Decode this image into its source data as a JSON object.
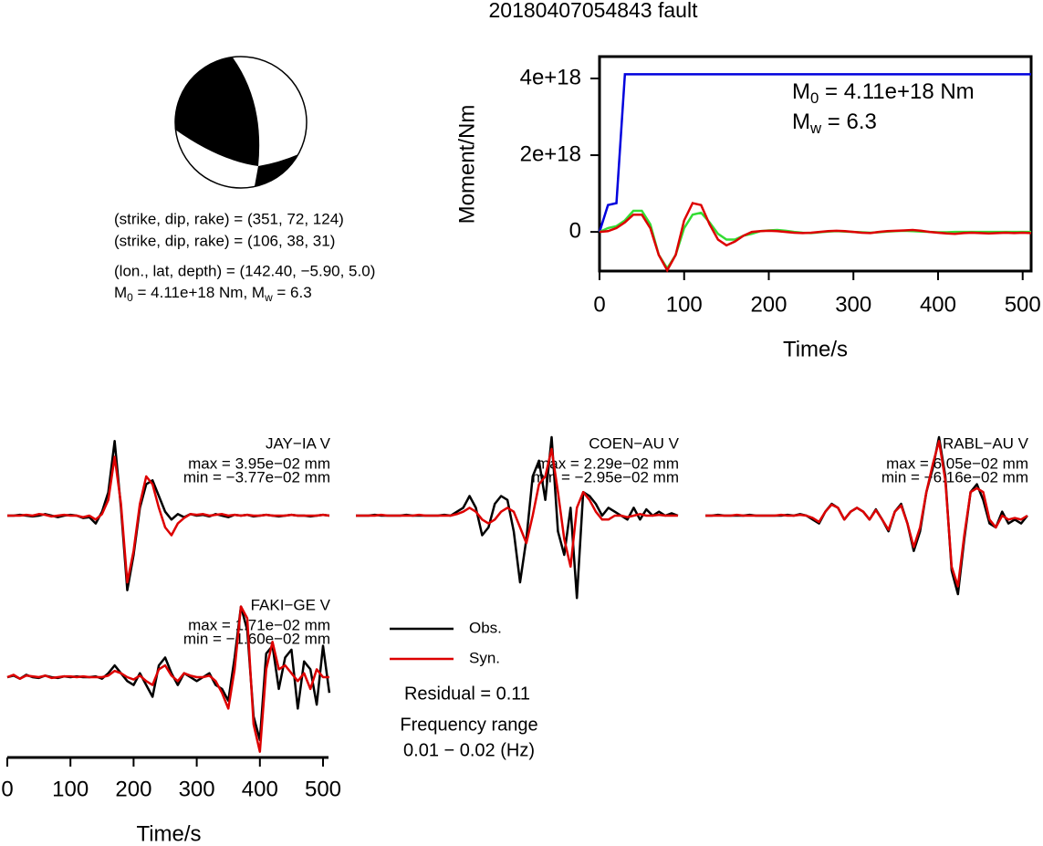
{
  "title": "20180407054843 fault",
  "mechanism": {
    "lines": [
      "(strike, dip, rake) = (351, 72, 124)",
      "(strike, dip, rake) = (106, 38, 31)",
      "(lon., lat, depth) = (142.40, −5.90, 5.0)"
    ],
    "moment": [
      "M",
      "0",
      " = 4.11e+18 Nm, M",
      "w",
      " = 6.3"
    ]
  },
  "legend": {
    "items": [
      {
        "name": "Obs.",
        "color": "#000000"
      },
      {
        "name": "Syn.",
        "color": "#dd0000"
      }
    ]
  },
  "residual": "Residual = 0.11",
  "frequency": [
    "Frequency range",
    "0.01 − 0.02 (Hz)"
  ],
  "chart_data": [
    {
      "type": "line",
      "ylabel": "Moment/Nm",
      "xlabel": "Time/s",
      "annotations": [
        [
          "M",
          "0",
          " = 4.11e+18 Nm"
        ],
        [
          "M",
          "w",
          " = 6.3"
        ]
      ],
      "xlim": [
        0,
        510
      ],
      "xticks": [
        0,
        100,
        200,
        300,
        400,
        500
      ],
      "ylim": [
        -1.02e+18,
        4.57e+18
      ],
      "yticks": [
        {
          "value": 0,
          "label": "0"
        },
        {
          "value": 2e+18,
          "label": "2e+18"
        },
        {
          "value": 4e+18,
          "label": "4e+18"
        }
      ],
      "x": [
        0,
        10,
        20,
        30,
        40,
        50,
        60,
        70,
        80,
        90,
        100,
        110,
        120,
        130,
        140,
        150,
        160,
        170,
        180,
        190,
        200,
        210,
        220,
        230,
        240,
        250,
        260,
        270,
        280,
        290,
        300,
        310,
        320,
        330,
        340,
        350,
        360,
        370,
        380,
        390,
        400,
        410,
        420,
        430,
        440,
        450,
        460,
        470,
        480,
        490,
        500,
        510
      ],
      "series": [
        {
          "color": "#0000dd",
          "values": [
            0,
            7e+17,
            7.5e+17,
            4.11e+18,
            4.11e+18,
            4.11e+18,
            4.11e+18,
            4.11e+18,
            4.11e+18,
            4.11e+18,
            4.11e+18,
            4.11e+18,
            4.11e+18,
            4.11e+18,
            4.11e+18,
            4.11e+18,
            4.11e+18,
            4.11e+18,
            4.11e+18,
            4.11e+18,
            4.11e+18,
            4.11e+18,
            4.11e+18,
            4.11e+18,
            4.11e+18,
            4.11e+18,
            4.11e+18,
            4.11e+18,
            4.11e+18,
            4.11e+18,
            4.11e+18,
            4.11e+18,
            4.11e+18,
            4.11e+18,
            4.11e+18,
            4.11e+18,
            4.11e+18,
            4.11e+18,
            4.11e+18,
            4.11e+18,
            4.11e+18,
            4.11e+18,
            4.11e+18,
            4.11e+18,
            4.11e+18,
            4.11e+18,
            4.11e+18,
            4.11e+18,
            4.11e+18,
            4.11e+18,
            4.11e+18,
            4.11e+18
          ]
        },
        {
          "color": "#33dd33",
          "values": [
            0,
            1e+17,
            1.5e+17,
            3e+17,
            5.5e+17,
            5.5e+17,
            2e+17,
            -6e+17,
            -9.5e+17,
            -6e+17,
            1e+17,
            4.5e+17,
            5e+17,
            2.5e+17,
            -5e+16,
            -2e+17,
            -2e+17,
            -1e+17,
            -5e+16,
            2e+16,
            4e+16,
            5e+16,
            3e+16,
            0,
            -2e+16,
            -3e+16,
            -1e+16,
            1e+16,
            2e+16,
            1e+16,
            0,
            -1e+16,
            -2e+16,
            -1e+16,
            1e+16,
            2e+16,
            3e+16,
            2e+16,
            1e+16,
            0,
            -1e+16,
            -1e+16,
            0,
            0,
            0,
            0,
            0,
            0,
            0,
            0,
            0,
            0
          ]
        },
        {
          "color": "#dd0000",
          "values": [
            0,
            2e+16,
            1e+17,
            2.5e+17,
            4.5e+17,
            4.5e+17,
            1e+17,
            -6e+17,
            -1e+18,
            -6e+17,
            3e+17,
            7.5e+17,
            7e+17,
            2e+17,
            -2e+17,
            -3.5e+17,
            -2.5e+17,
            -1e+17,
            0,
            2e+16,
            3e+16,
            2e+16,
            0,
            -2e+16,
            -3e+16,
            -2e+16,
            0,
            2e+16,
            3e+16,
            2e+16,
            0,
            -2e+16,
            -3e+16,
            0,
            2e+16,
            3e+16,
            4e+16,
            5e+16,
            3e+16,
            0,
            -2e+16,
            -4e+16,
            -5e+16,
            -3e+16,
            -2e+16,
            -3e+16,
            -4e+16,
            -3e+16,
            -2e+16,
            -3e+16,
            -2e+16,
            -3e+16
          ]
        }
      ]
    },
    {
      "type": "waveform",
      "title": "JAY−IA V",
      "max": "max = 3.95e−02 mm",
      "min": "min = −3.77e−02 mm",
      "x": [
        0,
        10,
        20,
        30,
        40,
        50,
        60,
        70,
        80,
        90,
        100,
        110,
        120,
        130,
        140,
        150,
        160,
        170,
        180,
        190,
        200,
        210,
        220,
        230,
        240,
        250,
        260,
        270,
        280,
        290,
        300,
        310,
        320,
        330,
        340,
        350,
        360,
        370,
        380,
        390,
        400,
        410,
        420,
        430,
        440,
        450,
        460,
        470,
        480,
        490,
        500,
        510
      ],
      "series": [
        {
          "color": "#000000",
          "values": [
            0,
            0,
            0.01,
            0,
            -0.01,
            0,
            0.02,
            0,
            -0.02,
            0,
            0.01,
            0,
            -0.03,
            -0.02,
            -0.1,
            0.05,
            0.3,
            0.95,
            0.1,
            -0.95,
            -0.5,
            0.1,
            0.4,
            0.45,
            0.25,
            0.05,
            -0.05,
            0.02,
            -0.02,
            0.02,
            0,
            0.01,
            -0.01,
            0.02,
            0,
            -0.02,
            0.01,
            0,
            0.01,
            -0.01,
            0,
            0.01,
            0,
            -0.01,
            0,
            0.01,
            0,
            0,
            -0.01,
            0,
            0.01,
            0
          ]
        },
        {
          "color": "#dd0000",
          "values": [
            0,
            0,
            0,
            0.01,
            0,
            0.02,
            0.01,
            -0.01,
            0,
            0.01,
            0,
            0,
            -0.02,
            0,
            -0.05,
            0.02,
            0.2,
            0.75,
            0.15,
            -0.85,
            -0.45,
            0.15,
            0.5,
            0.4,
            0.1,
            -0.15,
            -0.25,
            -0.1,
            -0.03,
            0.02,
            0.01,
            0.02,
            0,
            0.01,
            0.02,
            0,
            0.01,
            0,
            0.01,
            0,
            0,
            0.01,
            0,
            0,
            0,
            0.01,
            0,
            0,
            0,
            0,
            0.01,
            0
          ]
        }
      ]
    },
    {
      "type": "waveform",
      "title": "COEN−AU V",
      "max": "max = 2.29e−02 mm",
      "min": "min = −2.95e−02 mm",
      "x": [
        0,
        10,
        20,
        30,
        40,
        50,
        60,
        70,
        80,
        90,
        100,
        110,
        120,
        130,
        140,
        150,
        160,
        170,
        180,
        190,
        200,
        210,
        220,
        230,
        240,
        250,
        260,
        270,
        280,
        290,
        300,
        310,
        320,
        330,
        340,
        350,
        360,
        370,
        380,
        390,
        400,
        410,
        420,
        430,
        440,
        450,
        460,
        470,
        480,
        490,
        500,
        510
      ],
      "series": [
        {
          "color": "#000000",
          "values": [
            0,
            0,
            0,
            0.01,
            0,
            0,
            0,
            0,
            0.01,
            0,
            0,
            0,
            0,
            0,
            0.01,
            0,
            0.05,
            0.1,
            0.25,
            0.1,
            -0.25,
            -0.15,
            0.15,
            0.25,
            0.2,
            -0.2,
            -0.85,
            -0.3,
            0.5,
            0.7,
            0.2,
            1.0,
            -0.2,
            -0.5,
            0.1,
            -1.05,
            0.3,
            0.25,
            0.15,
            0,
            0.1,
            0.05,
            0,
            -0.05,
            0.1,
            -0.05,
            0.08,
            0,
            0.05,
            0,
            0.03,
            0
          ]
        },
        {
          "color": "#dd0000",
          "values": [
            0,
            0,
            0,
            0,
            0.01,
            0,
            0,
            0,
            0,
            0,
            0.01,
            0,
            0,
            0,
            0,
            0,
            0.02,
            0.05,
            0.1,
            0.05,
            -0.05,
            -0.1,
            -0.05,
            0.05,
            0.1,
            0.05,
            -0.15,
            -0.35,
            0,
            0.4,
            0.5,
            0.85,
            0.3,
            -0.3,
            -0.65,
            0.1,
            0.3,
            0.2,
            0.05,
            -0.05,
            -0.05,
            0,
            0,
            -0.02,
            0,
            0.02,
            0,
            0,
            0.01,
            0,
            0,
            0
          ]
        }
      ]
    },
    {
      "type": "waveform",
      "title": "RABL−AU V",
      "max": "max = 6.05e−02 mm",
      "min": "min = −6.16e−02 mm",
      "x": [
        0,
        10,
        20,
        30,
        40,
        50,
        60,
        70,
        80,
        90,
        100,
        110,
        120,
        130,
        140,
        150,
        160,
        170,
        180,
        190,
        200,
        210,
        220,
        230,
        240,
        250,
        260,
        270,
        280,
        290,
        300,
        310,
        320,
        330,
        340,
        350,
        360,
        370,
        380,
        390,
        400,
        410,
        420,
        430,
        440,
        450,
        460,
        470,
        480,
        490,
        500,
        510
      ],
      "series": [
        {
          "color": "#000000",
          "values": [
            0,
            0,
            0.01,
            0,
            0,
            0,
            0,
            0.01,
            0,
            0,
            0,
            0,
            0,
            0.01,
            0,
            0.02,
            0,
            -0.05,
            -0.1,
            0.05,
            0.15,
            0.1,
            -0.05,
            0.05,
            0.1,
            0.05,
            -0.05,
            0.08,
            -0.05,
            -0.2,
            0.05,
            0.15,
            -0.1,
            -0.45,
            -0.2,
            0.3,
            0.6,
            1.0,
            0.5,
            -0.7,
            -1.0,
            -0.3,
            0.3,
            0.4,
            0.2,
            -0.1,
            -0.15,
            0.05,
            -0.1,
            -0.05,
            -0.1,
            0
          ]
        },
        {
          "color": "#dd0000",
          "values": [
            0,
            0,
            0,
            0,
            0,
            0.01,
            0,
            0,
            0,
            0,
            0,
            0,
            0.01,
            0,
            0,
            0.01,
            0,
            -0.03,
            -0.08,
            0.05,
            0.14,
            0.1,
            -0.05,
            0.05,
            0.1,
            0.05,
            -0.05,
            0.07,
            -0.05,
            -0.18,
            0.05,
            0.13,
            -0.1,
            -0.4,
            -0.15,
            0.3,
            0.65,
            0.95,
            0.45,
            -0.65,
            -0.9,
            -0.25,
            0.3,
            0.35,
            0.3,
            -0.05,
            -0.15,
            0,
            -0.05,
            -0.03,
            -0.05,
            0
          ]
        }
      ]
    },
    {
      "type": "waveform",
      "title": "FAKI−GE V",
      "max": "max = 1.71e−02 mm",
      "min": "min = −1.60e−02 mm",
      "xlabel": "Time/s",
      "xlim": [
        0,
        510
      ],
      "xticks": [
        0,
        100,
        200,
        300,
        400,
        500
      ],
      "x": [
        0,
        10,
        20,
        30,
        40,
        50,
        60,
        70,
        80,
        90,
        100,
        110,
        120,
        130,
        140,
        150,
        160,
        170,
        180,
        190,
        200,
        210,
        220,
        230,
        240,
        250,
        260,
        270,
        280,
        290,
        300,
        310,
        320,
        330,
        340,
        350,
        360,
        370,
        380,
        390,
        400,
        410,
        420,
        430,
        440,
        450,
        460,
        470,
        480,
        490,
        500,
        510
      ],
      "series": [
        {
          "color": "#000000",
          "values": [
            0,
            0.02,
            -0.02,
            0.03,
            0,
            -0.01,
            0.02,
            0,
            -0.01,
            0.01,
            0,
            0.01,
            0,
            0,
            0.01,
            -0.02,
            0.05,
            0.15,
            0.05,
            -0.05,
            -0.1,
            0.05,
            -0.1,
            -0.25,
            0.15,
            0.25,
            0.05,
            -0.1,
            0.05,
            0,
            -0.05,
            0,
            0.05,
            -0.1,
            -0.15,
            -0.3,
            0.25,
            0.9,
            0.6,
            -0.5,
            -0.8,
            0.3,
            0.4,
            -0.15,
            0.25,
            0.35,
            -0.4,
            0.2,
            0.1,
            -0.35,
            0.4,
            -0.2
          ]
        },
        {
          "color": "#dd0000",
          "values": [
            0,
            0.03,
            -0.02,
            0.02,
            0.01,
            0,
            0.02,
            -0.01,
            0,
            0.01,
            0.01,
            0,
            0.01,
            0,
            0,
            0,
            0.02,
            0.08,
            0.05,
            0,
            -0.03,
            0.02,
            -0.05,
            -0.1,
            0.1,
            0.15,
            0.02,
            -0.05,
            0.05,
            0.02,
            0,
            0,
            0.02,
            -0.05,
            -0.2,
            -0.4,
            0.1,
            0.9,
            0.75,
            -0.6,
            -0.95,
            0.1,
            0.45,
            0.1,
            0.15,
            0.05,
            -0.05,
            0.05,
            -0.15,
            0.1,
            0,
            0
          ]
        }
      ]
    }
  ]
}
